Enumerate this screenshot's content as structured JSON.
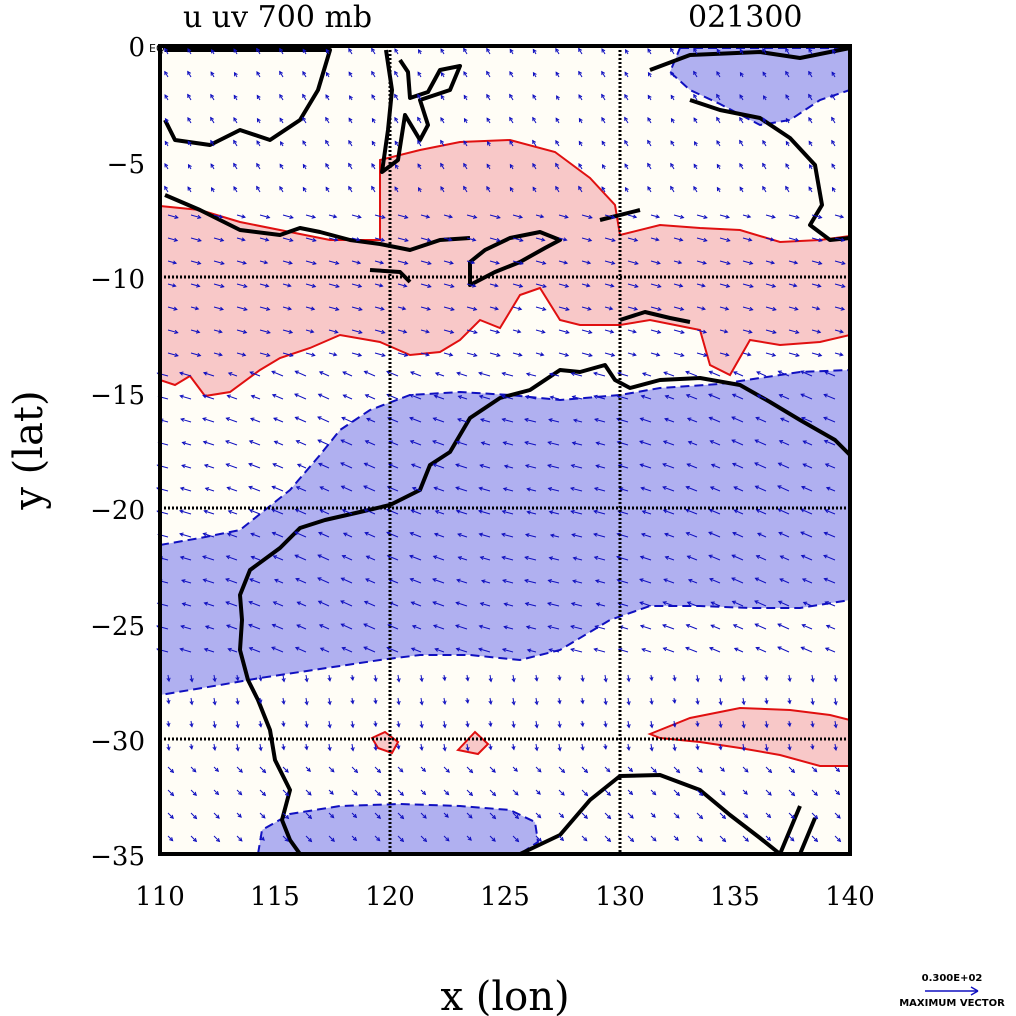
{
  "title_left": "u uv 700 mb",
  "title_right": "021300",
  "eq_label": "EQ",
  "x_label": "x (lon)",
  "y_label": "y (lat)",
  "x_ticks": [
    "110",
    "115",
    "120",
    "125",
    "130",
    "135",
    "140"
  ],
  "y_ticks": [
    "0",
    "−5",
    "−10",
    "−15",
    "−20",
    "−25",
    "−30",
    "−35"
  ],
  "x_range": [
    110,
    140
  ],
  "y_range": [
    -35,
    0
  ],
  "grid_lons": [
    120,
    130
  ],
  "grid_lats": [
    -10,
    -20,
    -30
  ],
  "ref_vector": {
    "value": "0.300E+02",
    "label": "MAXIMUM VECTOR"
  },
  "colors": {
    "positive_fill": "#f8c8c8",
    "positive_line": "#e01010",
    "negative_fill": "#b0b0f0",
    "negative_line": "#1010c0",
    "coast": "#000000",
    "vector": "#1010c0"
  }
}
